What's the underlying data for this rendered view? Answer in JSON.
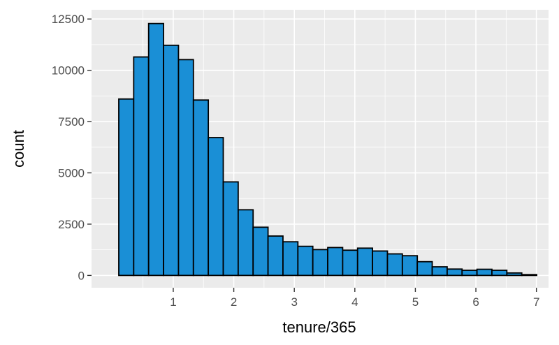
{
  "chart_data": {
    "type": "bar",
    "title": "",
    "xlabel": "tenure/365",
    "ylabel": "count",
    "xlim": [
      -0.35,
      7.2
    ],
    "ylim": [
      -600,
      12950
    ],
    "bin_width": 0.2466,
    "bin_start": 0.1,
    "values": [
      8600,
      10650,
      12280,
      11220,
      10520,
      8550,
      6720,
      4560,
      3200,
      2350,
      1920,
      1640,
      1420,
      1260,
      1360,
      1230,
      1330,
      1190,
      1050,
      960,
      670,
      420,
      310,
      250,
      300,
      250,
      120,
      40
    ],
    "x_ticks": [
      1,
      2,
      3,
      4,
      5,
      6,
      7
    ],
    "x_tick_labels": [
      "1",
      "2",
      "3",
      "4",
      "5",
      "6",
      "7"
    ],
    "y_ticks": [
      0,
      2500,
      5000,
      7500,
      10000,
      12500
    ],
    "y_tick_labels": [
      "0",
      "2500",
      "5000",
      "7500",
      "10000",
      "12500"
    ],
    "grid": true,
    "panel_color": "#EBEBEB",
    "grid_color": "#FFFFFF",
    "bar_fill": "#1A8FD6",
    "bar_stroke": "#000000"
  }
}
